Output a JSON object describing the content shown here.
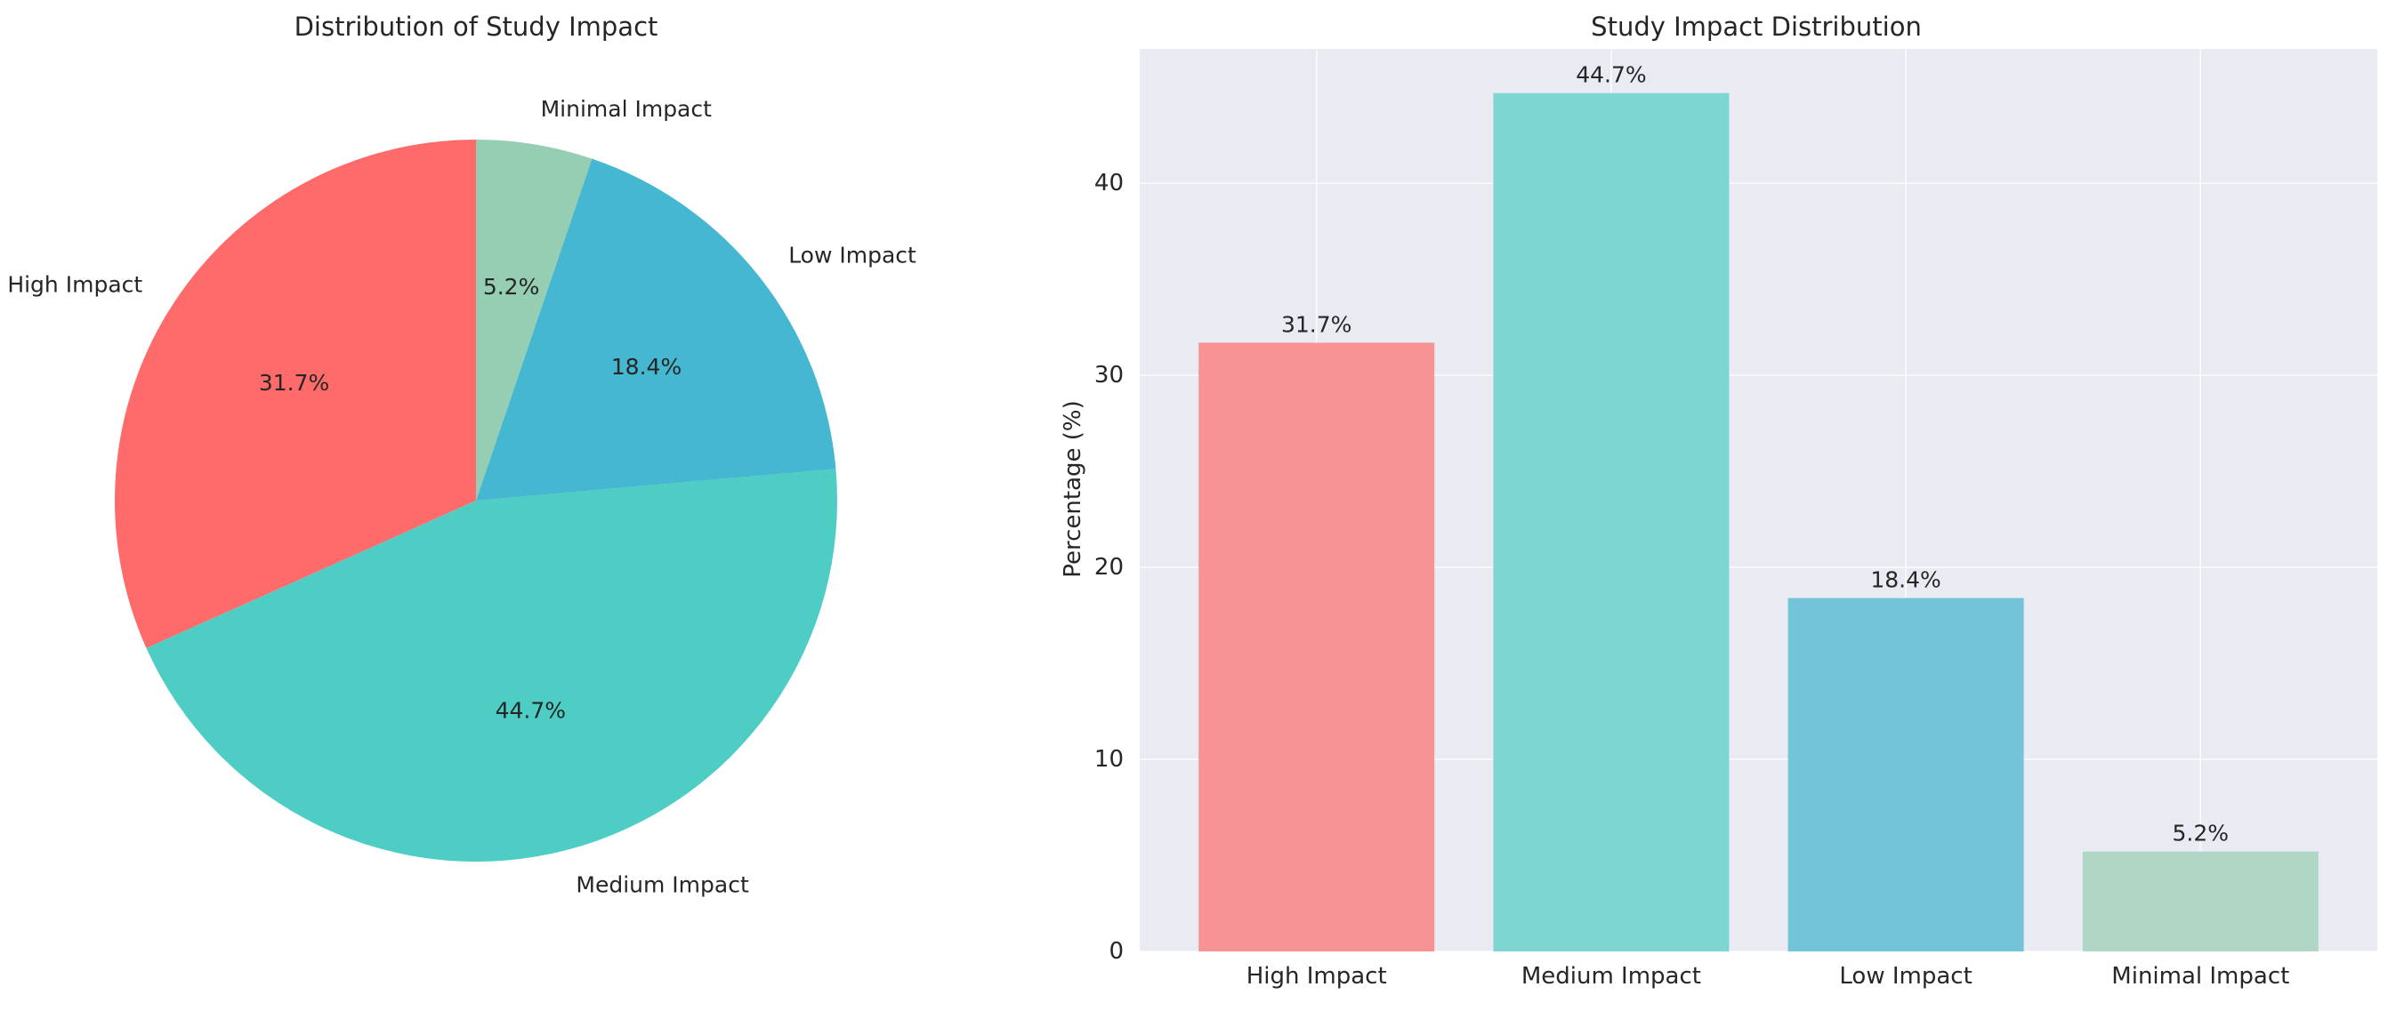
{
  "chart_data": [
    {
      "type": "pie",
      "title": "Distribution of Study Impact",
      "categories": [
        "High Impact",
        "Medium Impact",
        "Low Impact",
        "Minimal Impact"
      ],
      "values": [
        31.7,
        44.7,
        18.4,
        5.2
      ],
      "value_labels": [
        "31.7%",
        "44.7%",
        "18.4%",
        "5.2%"
      ],
      "colors": [
        "#ff6b6b",
        "#4ecdc4",
        "#45b7d1",
        "#96ceb4"
      ],
      "start_angle": 90,
      "direction": "counterclockwise"
    },
    {
      "type": "bar",
      "title": "Study Impact Distribution",
      "categories": [
        "High Impact",
        "Medium Impact",
        "Low Impact",
        "Minimal Impact"
      ],
      "values": [
        31.7,
        44.7,
        18.4,
        5.2
      ],
      "value_labels": [
        "31.7%",
        "44.7%",
        "18.4%",
        "5.2%"
      ],
      "colors": [
        "#f79394",
        "#7dd6d2",
        "#74c4d9",
        "#b0d6c6"
      ],
      "xlabel": "",
      "ylabel": "Percentage (%)",
      "ylim": [
        0,
        47
      ],
      "yticks": [
        0,
        10,
        20,
        30,
        40
      ],
      "grid": true,
      "background": "#eaeaf2"
    }
  ]
}
